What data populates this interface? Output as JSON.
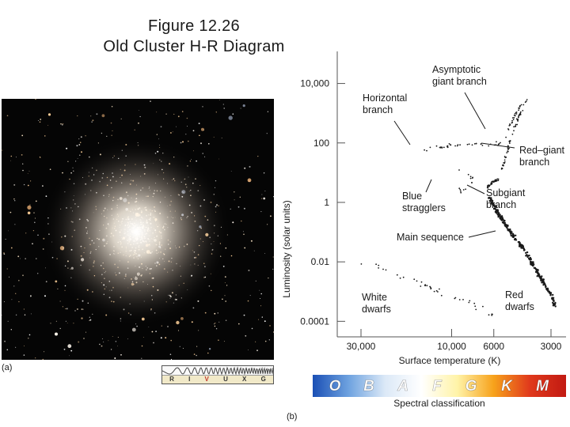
{
  "title": {
    "line1": "Figure 12.26",
    "line2": "Old Cluster H-R Diagram"
  },
  "photo": {
    "panel_label": "(a)",
    "band_letters": [
      "R",
      "I",
      "V",
      "U",
      "X",
      "G"
    ],
    "highlight_band": "V"
  },
  "chart_data": {
    "type": "scatter",
    "panel_label": "(b)",
    "xlabel": "Surface temperature (K)",
    "ylabel": "Luminosity (solar units)",
    "x_scale": "log, decreasing to the right",
    "y_scale": "log",
    "xlim": [
      40000,
      2500
    ],
    "ylim": [
      3e-05,
      120000
    ],
    "x_ticks": [
      {
        "value": 30000,
        "label": "30,000"
      },
      {
        "value": 10000,
        "label": "10,000"
      },
      {
        "value": 6000,
        "label": "6000"
      },
      {
        "value": 3000,
        "label": "3000"
      }
    ],
    "y_ticks": [
      {
        "value": 10000,
        "label": "10,000"
      },
      {
        "value": 100,
        "label": "100"
      },
      {
        "value": 1,
        "label": "1"
      },
      {
        "value": 0.01,
        "label": "0.01"
      },
      {
        "value": 0.0001,
        "label": "0.0001"
      }
    ],
    "regions": [
      {
        "name": "Main sequence",
        "points": [
          [
            6300,
            1.5
          ],
          [
            5900,
            0.6
          ],
          [
            5500,
            0.3
          ],
          [
            5000,
            0.12
          ],
          [
            4500,
            0.05
          ],
          [
            4000,
            0.018
          ],
          [
            3500,
            0.004
          ],
          [
            3200,
            0.0015
          ],
          [
            3000,
            0.0008
          ],
          [
            2850,
            0.0003
          ]
        ]
      },
      {
        "name": "Subgiant branch",
        "points": [
          [
            6500,
            3
          ],
          [
            6300,
            4
          ],
          [
            6000,
            5
          ],
          [
            5700,
            6
          ]
        ]
      },
      {
        "name": "Red-giant branch",
        "points": [
          [
            5500,
            10
          ],
          [
            5200,
            30
          ],
          [
            5000,
            80
          ],
          [
            4800,
            200
          ],
          [
            4500,
            600
          ],
          [
            4200,
            1500
          ],
          [
            4000,
            3000
          ]
        ]
      },
      {
        "name": "Asymptotic giant branch",
        "points": [
          [
            5200,
            150
          ],
          [
            4900,
            400
          ],
          [
            4600,
            1000
          ],
          [
            4300,
            2000
          ]
        ]
      },
      {
        "name": "Horizontal branch",
        "points": [
          [
            15000,
            50
          ],
          [
            12000,
            70
          ],
          [
            10000,
            80
          ],
          [
            8000,
            85
          ],
          [
            7000,
            85
          ],
          [
            6000,
            90
          ],
          [
            5500,
            100
          ]
        ]
      },
      {
        "name": "Blue stragglers",
        "points": [
          [
            9000,
            12
          ],
          [
            8000,
            8
          ],
          [
            7500,
            5
          ],
          [
            8500,
            3
          ],
          [
            9500,
            2
          ]
        ]
      },
      {
        "name": "White dwarfs",
        "points": [
          [
            30000,
            0.01
          ],
          [
            20000,
            0.004
          ],
          [
            15000,
            0.002
          ],
          [
            11000,
            0.0008
          ],
          [
            8000,
            0.0004
          ],
          [
            6000,
            0.00015
          ]
        ]
      }
    ],
    "annotations": [
      {
        "text": [
          "Asymptotic",
          "giant branch"
        ]
      },
      {
        "text": [
          "Horizontal",
          "branch"
        ]
      },
      {
        "text": [
          "Red–giant",
          "branch"
        ]
      },
      {
        "text": [
          "Subgiant",
          "branch"
        ]
      },
      {
        "text": [
          "Blue",
          "stragglers"
        ]
      },
      {
        "text": [
          "Main sequence"
        ]
      },
      {
        "text": [
          "White",
          "dwarfs"
        ]
      },
      {
        "text": [
          "Red",
          "dwarfs"
        ]
      }
    ]
  },
  "spectral": {
    "label": "Spectral classification",
    "classes": [
      "O",
      "B",
      "A",
      "F",
      "G",
      "K",
      "M"
    ],
    "gradient": [
      "#1a4fb5",
      "#6fa3e0",
      "#dce9f7",
      "#ffffff",
      "#fff3a8",
      "#f7a21b",
      "#e0391c",
      "#c21a12"
    ]
  },
  "colors": {
    "axis": "#555555",
    "point": "#1a1a1a",
    "plot_bg": "#ffffff"
  }
}
